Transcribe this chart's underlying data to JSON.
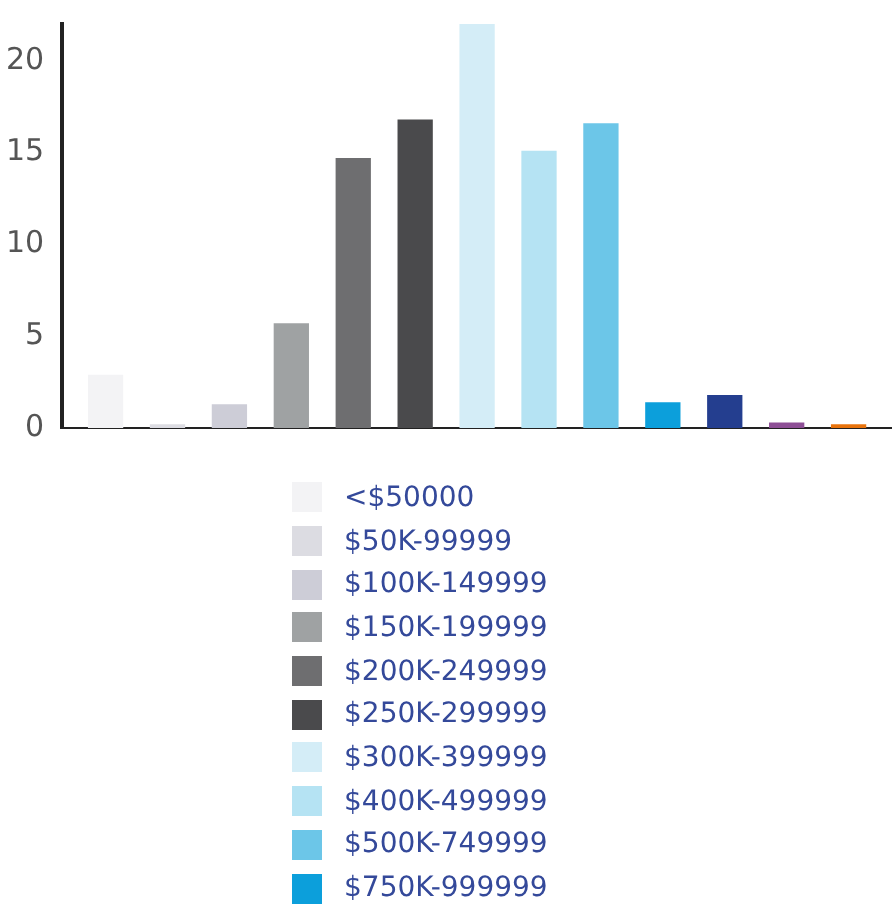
{
  "chart_data": {
    "type": "bar",
    "categories": [
      null
    ],
    "ylim": [
      0,
      22
    ],
    "yticks": [
      0,
      5,
      10,
      15,
      20
    ],
    "grid": false,
    "legend": "bottom",
    "tick_labels": "y",
    "series": [
      {
        "name": "<$50000",
        "color": "#f3f3f5",
        "values": [
          2.9
        ]
      },
      {
        "name": "$50K-99999",
        "color": "#dcdce2",
        "values": [
          0.2
        ]
      },
      {
        "name": "$100K-149999",
        "color": "#cdcdd7",
        "values": [
          1.3
        ]
      },
      {
        "name": "$150K-199999",
        "color": "#9fa2a3",
        "values": [
          5.7
        ]
      },
      {
        "name": "$200K-249999",
        "color": "#6e6e70",
        "values": [
          14.7
        ]
      },
      {
        "name": "$250K-299999",
        "color": "#4a4a4c",
        "values": [
          16.8
        ]
      },
      {
        "name": "$300K-399999",
        "color": "#d4edf7",
        "values": [
          22
        ]
      },
      {
        "name": "$400K-499999",
        "color": "#b5e3f3",
        "values": [
          15.1
        ]
      },
      {
        "name": "$500K-749999",
        "color": "#6cc6e8",
        "values": [
          16.6
        ]
      },
      {
        "name": "$750K-999999",
        "color": "#0c9fdb",
        "values": [
          1.4
        ]
      },
      {
        "color": "#243e8f",
        "values": [
          1.8
        ]
      },
      {
        "color": "#8e4f96",
        "values": [
          0.3
        ]
      },
      {
        "color": "#e8730c",
        "values": [
          0.2
        ]
      }
    ]
  }
}
